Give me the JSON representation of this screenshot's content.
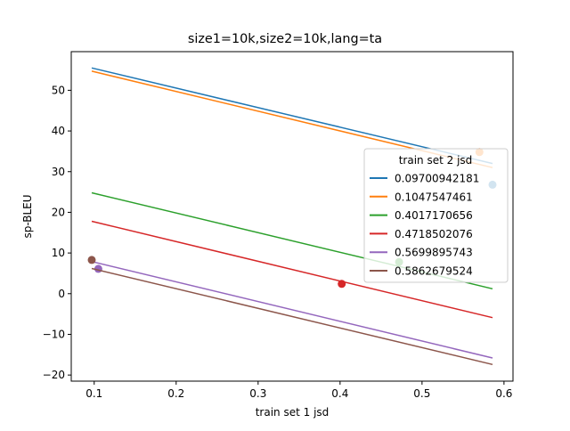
{
  "chart_data": {
    "type": "line",
    "title": "size1=10k,size2=10k,lang=ta",
    "xlabel": "train set 1 jsd",
    "ylabel": "sp-BLEU",
    "xlim": [
      0.072,
      0.611
    ],
    "ylim": [
      -21.5,
      59.5
    ],
    "xticks": [
      0.1,
      0.2,
      0.3,
      0.4,
      0.5,
      0.6
    ],
    "xtick_labels": [
      "0.1",
      "0.2",
      "0.3",
      "0.4",
      "0.5",
      "0.6"
    ],
    "yticks": [
      -20,
      -10,
      0,
      10,
      20,
      30,
      40,
      50
    ],
    "ytick_labels": [
      "−20",
      "−10",
      "0",
      "10",
      "20",
      "30",
      "40",
      "50"
    ],
    "grid": false,
    "legend": {
      "title": "train set 2 jsd",
      "placement": "right"
    },
    "series": [
      {
        "name": "0.09700942181",
        "color": "#1f77b4",
        "line": [
          [
            0.097,
            55.5
          ],
          [
            0.586,
            32.0
          ]
        ],
        "points": [
          [
            0.586,
            26.8
          ]
        ]
      },
      {
        "name": "0.1047547461",
        "color": "#ff7f0e",
        "line": [
          [
            0.097,
            54.7
          ],
          [
            0.586,
            31.0
          ]
        ],
        "points": [
          [
            0.57,
            34.8
          ]
        ]
      },
      {
        "name": "0.4017170656",
        "color": "#2ca02c",
        "line": [
          [
            0.097,
            24.8
          ],
          [
            0.586,
            1.2
          ]
        ],
        "points": [
          [
            0.472,
            7.8
          ]
        ]
      },
      {
        "name": "0.4718502076",
        "color": "#d62728",
        "line": [
          [
            0.097,
            17.8
          ],
          [
            0.586,
            -5.9
          ]
        ],
        "points": [
          [
            0.402,
            2.4
          ]
        ]
      },
      {
        "name": "0.5699895743",
        "color": "#9467bd",
        "line": [
          [
            0.097,
            7.9
          ],
          [
            0.586,
            -15.8
          ]
        ],
        "points": [
          [
            0.105,
            6.1
          ]
        ]
      },
      {
        "name": "0.5862679524",
        "color": "#8c564b",
        "line": [
          [
            0.097,
            6.2
          ],
          [
            0.586,
            -17.4
          ]
        ],
        "points": [
          [
            0.097,
            8.3
          ]
        ]
      }
    ]
  }
}
